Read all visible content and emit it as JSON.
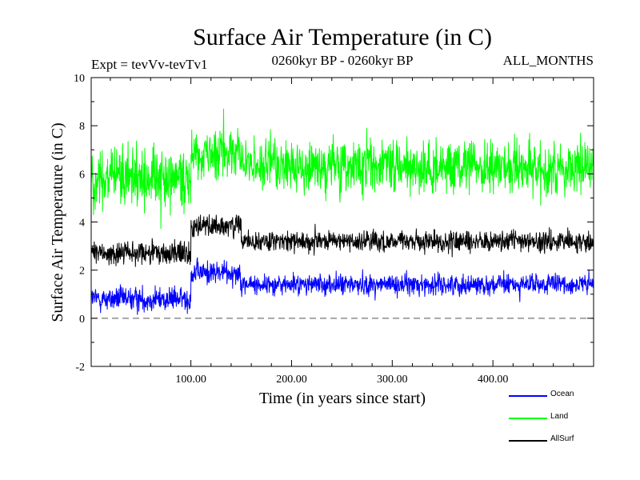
{
  "chart_data": {
    "type": "line",
    "title": "Surface Air Temperature (in C)",
    "subtitle_left": "Expt = tevVv-tevTv1",
    "subtitle_center": "0260kyr BP - 0260kyr BP",
    "subtitle_right": "ALL_MONTHS",
    "xlabel": "Time (in years since start)",
    "ylabel": "Surface Air Temperature (in C)",
    "xlim": [
      1,
      500
    ],
    "ylim": [
      -2,
      10
    ],
    "xticks": [
      100,
      200,
      300,
      400
    ],
    "xtick_labels": [
      "100.00",
      "200.00",
      "300.00",
      "400.00"
    ],
    "yticks": [
      -2,
      0,
      2,
      4,
      6,
      8,
      10
    ],
    "ytick_labels": [
      "-2",
      "0",
      "2",
      "4",
      "6",
      "8",
      "10"
    ],
    "zero_line": 0,
    "series": [
      {
        "name": "Ocean",
        "color": "#0000ff",
        "regimes": [
          {
            "x_start": 1,
            "x_end": 100,
            "mean": 0.8,
            "spread": 0.35
          },
          {
            "x_start": 100,
            "x_end": 150,
            "mean": 1.9,
            "spread": 0.35
          },
          {
            "x_start": 150,
            "x_end": 500,
            "mean": 1.4,
            "spread": 0.3
          }
        ]
      },
      {
        "name": "Land",
        "color": "#00ff00",
        "regimes": [
          {
            "x_start": 1,
            "x_end": 100,
            "mean": 5.8,
            "spread": 0.9
          },
          {
            "x_start": 100,
            "x_end": 150,
            "mean": 6.9,
            "spread": 0.8
          },
          {
            "x_start": 150,
            "x_end": 500,
            "mean": 6.3,
            "spread": 0.75
          }
        ]
      },
      {
        "name": "AllSurf",
        "color": "#000000",
        "regimes": [
          {
            "x_start": 1,
            "x_end": 100,
            "mean": 2.7,
            "spread": 0.35
          },
          {
            "x_start": 100,
            "x_end": 150,
            "mean": 3.8,
            "spread": 0.35
          },
          {
            "x_start": 150,
            "x_end": 500,
            "mean": 3.2,
            "spread": 0.3
          }
        ]
      }
    ],
    "legend": [
      {
        "label": "Ocean",
        "color": "#0000ff"
      },
      {
        "label": "Land",
        "color": "#00ff00"
      },
      {
        "label": "AllSurf",
        "color": "#000000"
      }
    ],
    "legend_position": "bottom-right"
  }
}
